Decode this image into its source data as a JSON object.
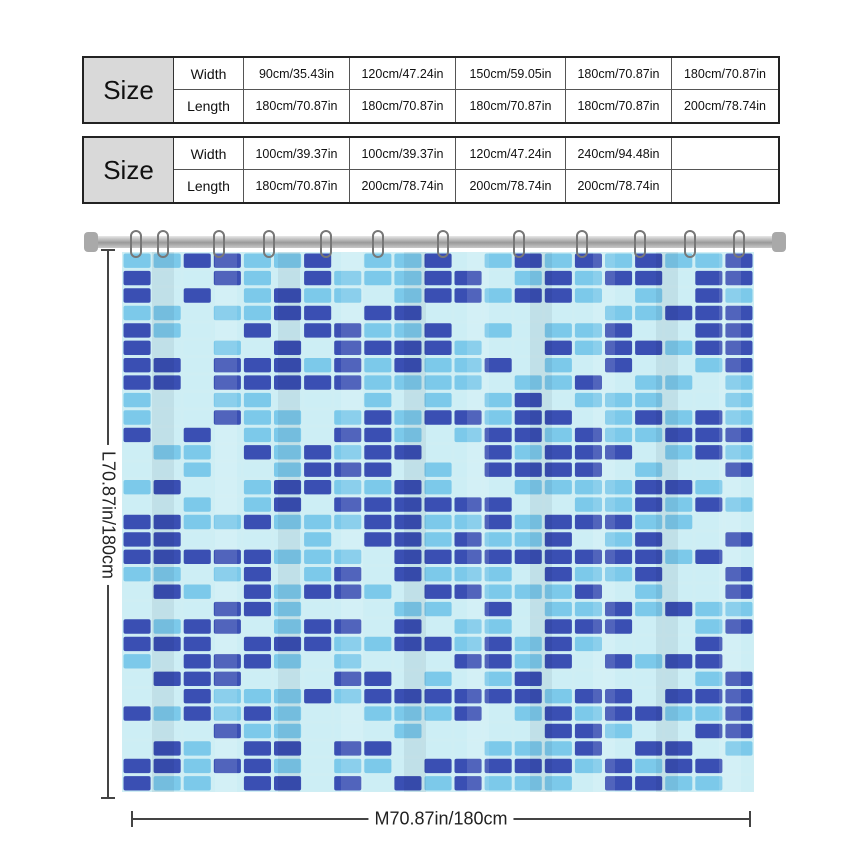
{
  "size_tables": [
    {
      "heading": "Size",
      "rows": [
        {
          "label": "Width",
          "values": [
            "90cm/35.43in",
            "120cm/47.24in",
            "150cm/59.05in",
            "180cm/70.87in",
            "180cm/70.87in"
          ]
        },
        {
          "label": "Length",
          "values": [
            "180cm/70.87in",
            "180cm/70.87in",
            "180cm/70.87in",
            "180cm/70.87in",
            "200cm/78.74in"
          ]
        }
      ]
    },
    {
      "heading": "Size",
      "rows": [
        {
          "label": "Width",
          "values": [
            "100cm/39.37in",
            "100cm/39.37in",
            "120cm/47.24in",
            "240cm/94.48in",
            ""
          ]
        },
        {
          "label": "Length",
          "values": [
            "180cm/70.87in",
            "200cm/78.74in",
            "200cm/78.74in",
            "200cm/78.74in",
            ""
          ]
        }
      ]
    }
  ],
  "dimensions": {
    "length_label": "L70.87in/180cm",
    "width_label": "M70.87in/180cm"
  },
  "colors": {
    "tile_dark": "#3a4fb3",
    "tile_mid": "#7cc9ea",
    "tile_light": "#cdeef5",
    "grout": "#ffffff"
  }
}
